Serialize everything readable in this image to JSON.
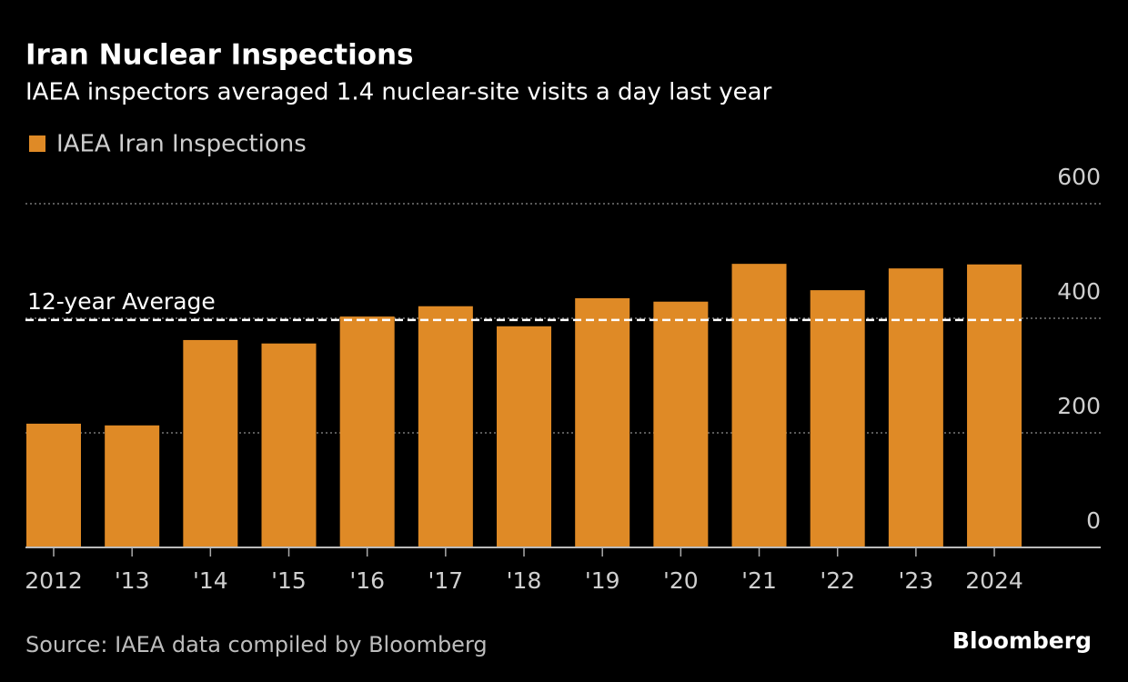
{
  "chart_data": {
    "type": "bar",
    "title": "Iran Nuclear Inspections",
    "subtitle": "IAEA inspectors averaged 1.4 nuclear-site visits a day last year",
    "categories": [
      "2012",
      "'13",
      "'14",
      "'15",
      "'16",
      "'17",
      "'18",
      "'19",
      "'20",
      "'21",
      "'22",
      "'23",
      "2024"
    ],
    "series": [
      {
        "name": "IAEA Iran Inspections",
        "color": "#df8a26",
        "values": [
          216,
          213,
          362,
          356,
          403,
          421,
          386,
          435,
          429,
          495,
          449,
          487,
          494
        ]
      }
    ],
    "average": {
      "value": 397,
      "label": "12-year Average"
    },
    "ylim": [
      0,
      600
    ],
    "yticks": [
      0,
      200,
      400,
      600
    ],
    "grid": true,
    "source": "Source: IAEA data compiled by Bloomberg",
    "brand": "Bloomberg"
  }
}
